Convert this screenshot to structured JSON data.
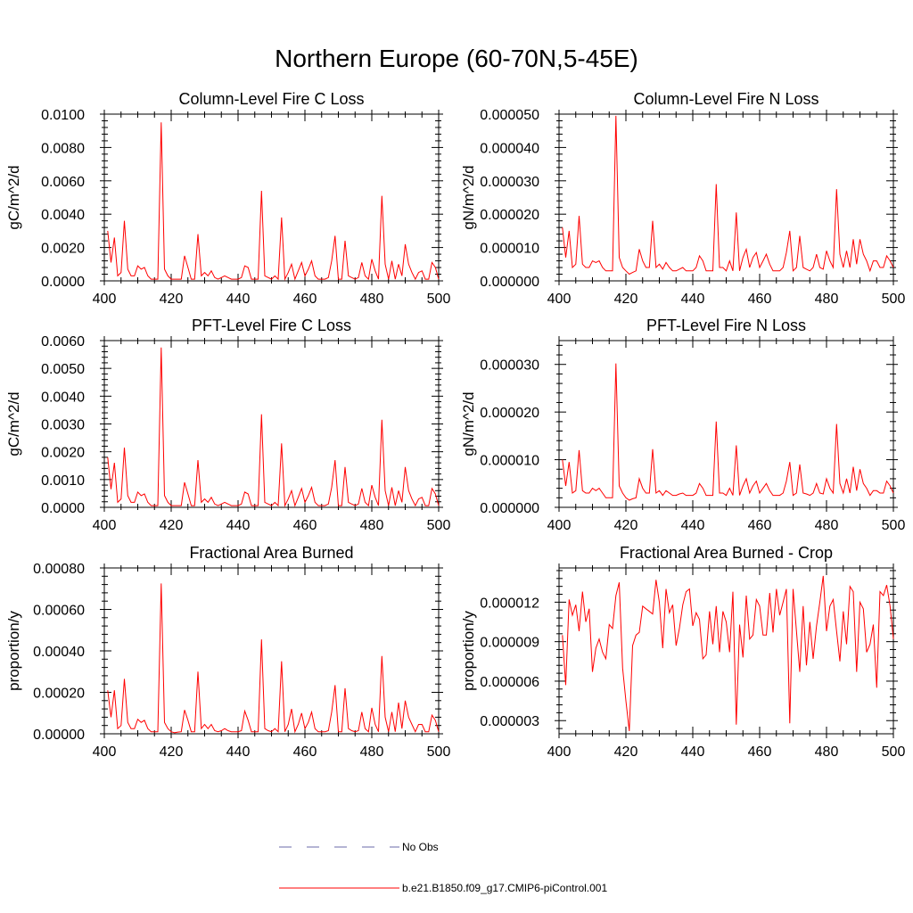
{
  "figure": {
    "title": "Northern Europe (60-70N,5-45E)"
  },
  "legend": {
    "placement": "bottom-center",
    "entries": [
      {
        "label": "No Obs",
        "color": "#6a6aa8",
        "style": "dashed"
      },
      {
        "label": "b.e21.B1850.f09_g17.CMIP6-piControl.001",
        "color": "#ff0000",
        "style": "solid"
      }
    ]
  },
  "chart_data": [
    {
      "type": "line",
      "title": "Column-Level Fire C Loss",
      "ylabel": "gC/m^2/d",
      "xlim": [
        400,
        500
      ],
      "xticks": [
        "400",
        "420",
        "440",
        "460",
        "480",
        "500"
      ],
      "ylim": [
        0,
        0.01
      ],
      "yticks": [
        0,
        0.002,
        0.004,
        0.006,
        0.008,
        0.01
      ],
      "ytick_labels": [
        "0.0000",
        "0.0020",
        "0.0040",
        "0.0060",
        "0.0080",
        "0.0100"
      ],
      "x_start": 401,
      "series": [
        {
          "name": "b.e21.B1850.f09_g17.CMIP6-piControl.001",
          "color": "#ff0000",
          "values": [
            0.003,
            0.0011,
            0.0026,
            0.0003,
            0.0005,
            0.0036,
            0.0007,
            0.0003,
            0.0003,
            0.0009,
            0.0007,
            0.0008,
            0.0003,
            0.0001,
            0.0001,
            0.0001,
            0.0095,
            0.0007,
            0.0003,
            0.0001,
            0.0001,
            0.0001,
            0.0001,
            0.0015,
            0.0008,
            0.0001,
            0.0001,
            0.0028,
            0.0003,
            0.0005,
            0.0003,
            0.0006,
            0.0002,
            0.0001,
            0.0002,
            0.0003,
            0.0002,
            0.0001,
            0.0001,
            0.0001,
            0.0002,
            0.0009,
            0.0008,
            0.0001,
            0.0001,
            0.0001,
            0.0054,
            0.0003,
            0.0002,
            0.0001,
            0.0003,
            0.0001,
            0.0038,
            0.0001,
            0.0005,
            0.001,
            0.0001,
            0.0006,
            0.0011,
            0.0003,
            0.0007,
            0.0012,
            0.0003,
            0.0001,
            0.0001,
            0.0001,
            0.0002,
            0.0012,
            0.0027,
            0.0001,
            0.0001,
            0.0024,
            0.0003,
            0.0002,
            0.0001,
            0.0002,
            0.0011,
            0.0003,
            0.0001,
            0.0013,
            0.0006,
            0.0001,
            0.0051,
            0.001,
            0.0001,
            0.0012,
            0.0001,
            0.001,
            0.0003,
            0.0022,
            0.001,
            0.0005,
            0.0001,
            0.0005,
            0.0006,
            0.0001,
            0.0001,
            0.0011,
            0.0008,
            0.0001
          ]
        }
      ]
    },
    {
      "type": "line",
      "title": "Column-Level Fire N Loss",
      "ylabel": "gN/m^2/d",
      "xlim": [
        400,
        500
      ],
      "xticks": [
        "400",
        "420",
        "440",
        "460",
        "480",
        "500"
      ],
      "ylim": [
        0,
        5e-05
      ],
      "yticks": [
        0,
        1e-05,
        2e-05,
        3e-05,
        4e-05,
        5e-05
      ],
      "ytick_labels": [
        "0.000000",
        "0.000010",
        "0.000020",
        "0.000030",
        "0.000040",
        "0.000050"
      ],
      "x_start": 401,
      "series": [
        {
          "name": "b.e21.B1850.f09_g17.CMIP6-piControl.001",
          "color": "#ff0000",
          "values": [
            1.6e-05,
            7e-06,
            1.5e-05,
            4e-06,
            5e-06,
            1.95e-05,
            5e-06,
            4e-06,
            4e-06,
            6e-06,
            5.5e-06,
            6e-06,
            4e-06,
            3e-06,
            3e-06,
            3e-06,
            4.95e-05,
            7e-06,
            4e-06,
            3e-06,
            2e-06,
            2.5e-06,
            3e-06,
            9.5e-06,
            6e-06,
            4e-06,
            4e-06,
            1.8e-05,
            4e-06,
            5e-06,
            3.5e-06,
            5.5e-06,
            4e-06,
            3e-06,
            3e-06,
            3.5e-06,
            4e-06,
            3e-06,
            3e-06,
            3e-06,
            4e-06,
            7.5e-06,
            6e-06,
            3e-06,
            3e-06,
            3e-06,
            2.9e-05,
            4e-06,
            4e-06,
            3e-06,
            6e-06,
            3e-06,
            2.05e-05,
            3e-06,
            7e-06,
            9.5e-06,
            4e-06,
            7e-06,
            8.5e-06,
            4e-06,
            6e-06,
            8e-06,
            5e-06,
            3e-06,
            3e-06,
            3e-06,
            4e-06,
            8.5e-06,
            1.5e-05,
            3e-06,
            4e-06,
            1.35e-05,
            4e-06,
            3.5e-06,
            3e-06,
            4e-06,
            8e-06,
            4e-06,
            3.5e-06,
            9e-06,
            6e-06,
            4e-06,
            2.75e-05,
            8e-06,
            4e-06,
            9e-06,
            4e-06,
            1.25e-05,
            5e-06,
            1.25e-05,
            8e-06,
            6e-06,
            3e-06,
            6e-06,
            6e-06,
            4e-06,
            4e-06,
            7.5e-06,
            6e-06,
            4e-06
          ]
        }
      ]
    },
    {
      "type": "line",
      "title": "PFT-Level Fire C Loss",
      "ylabel": "gC/m^2/d",
      "xlim": [
        400,
        500
      ],
      "xticks": [
        "400",
        "420",
        "440",
        "460",
        "480",
        "500"
      ],
      "ylim": [
        0,
        0.006
      ],
      "yticks": [
        0,
        0.001,
        0.002,
        0.003,
        0.004,
        0.005,
        0.006
      ],
      "ytick_labels": [
        "0.0000",
        "0.0010",
        "0.0020",
        "0.0030",
        "0.0040",
        "0.0050",
        "0.0060"
      ],
      "x_start": 401,
      "series": [
        {
          "name": "b.e21.B1850.f09_g17.CMIP6-piControl.001",
          "color": "#ff0000",
          "values": [
            0.0018,
            0.00065,
            0.0016,
            0.00018,
            0.0003,
            0.00215,
            0.00042,
            0.00018,
            0.00018,
            0.00055,
            0.00042,
            0.00048,
            0.00018,
            6e-05,
            6e-05,
            6e-05,
            0.00575,
            0.00042,
            0.00018,
            6e-05,
            6e-05,
            6e-05,
            6e-05,
            0.0009,
            0.00048,
            6e-05,
            6e-05,
            0.0017,
            0.00018,
            0.0003,
            0.00018,
            0.00036,
            0.00012,
            6e-05,
            0.00012,
            0.00018,
            0.00012,
            6e-05,
            6e-05,
            6e-05,
            0.00012,
            0.00055,
            0.00048,
            6e-05,
            6e-05,
            6e-05,
            0.00335,
            0.00018,
            0.00012,
            6e-05,
            0.00018,
            6e-05,
            0.0023,
            6e-05,
            0.0003,
            0.0006,
            6e-05,
            0.00036,
            0.00068,
            0.00018,
            0.00042,
            0.00072,
            0.00018,
            6e-05,
            6e-05,
            6e-05,
            0.00012,
            0.00072,
            0.0017,
            6e-05,
            6e-05,
            0.00145,
            0.00018,
            0.00012,
            6e-05,
            0.00012,
            0.00068,
            0.00018,
            6e-05,
            0.0008,
            0.00036,
            6e-05,
            0.00315,
            0.0006,
            6e-05,
            0.00072,
            6e-05,
            0.0006,
            0.00018,
            0.00145,
            0.0006,
            0.0003,
            6e-05,
            0.0003,
            0.00036,
            6e-05,
            6e-05,
            0.00068,
            0.00048,
            6e-05
          ]
        }
      ]
    },
    {
      "type": "line",
      "title": "PFT-Level Fire N Loss",
      "ylabel": "gN/m^2/d",
      "xlim": [
        400,
        500
      ],
      "xticks": [
        "400",
        "420",
        "440",
        "460",
        "480",
        "500"
      ],
      "ylim": [
        0,
        3.5e-05
      ],
      "yticks": [
        0,
        1e-05,
        2e-05,
        3e-05
      ],
      "ytick_labels": [
        "0.000000",
        "0.000010",
        "0.000020",
        "0.000030"
      ],
      "x_start": 401,
      "series": [
        {
          "name": "b.e21.B1850.f09_g17.CMIP6-piControl.001",
          "color": "#ff0000",
          "values": [
            1e-05,
            4.5e-06,
            9.5e-06,
            3e-06,
            3.5e-06,
            1.2e-05,
            3.5e-06,
            3e-06,
            3e-06,
            4e-06,
            3.5e-06,
            4e-06,
            3e-06,
            2e-06,
            2e-06,
            2e-06,
            3.02e-05,
            4.5e-06,
            3e-06,
            2e-06,
            1.5e-06,
            1.8e-06,
            2e-06,
            6e-06,
            4e-06,
            3e-06,
            3e-06,
            1.22e-05,
            3e-06,
            3.5e-06,
            2.5e-06,
            3.5e-06,
            3e-06,
            2.5e-06,
            2.5e-06,
            2.8e-06,
            3e-06,
            2.5e-06,
            2.5e-06,
            2.5e-06,
            3e-06,
            5e-06,
            4e-06,
            2.5e-06,
            2.5e-06,
            2.5e-06,
            1.8e-05,
            3e-06,
            3e-06,
            2.5e-06,
            4e-06,
            2.5e-06,
            1.3e-05,
            2.5e-06,
            4.5e-06,
            6e-06,
            3e-06,
            4.5e-06,
            5.5e-06,
            3e-06,
            4e-06,
            5e-06,
            3.5e-06,
            2.5e-06,
            2.5e-06,
            2.5e-06,
            3e-06,
            5.5e-06,
            9.5e-06,
            2.5e-06,
            3e-06,
            9e-06,
            3e-06,
            2.8e-06,
            2.5e-06,
            3e-06,
            5e-06,
            3e-06,
            2.8e-06,
            6e-06,
            4e-06,
            3e-06,
            1.75e-05,
            5e-06,
            3e-06,
            6e-06,
            3e-06,
            8.5e-06,
            3.5e-06,
            8e-06,
            5e-06,
            4e-06,
            2.5e-06,
            3.5e-06,
            3.5e-06,
            3e-06,
            3e-06,
            5.5e-06,
            4.5e-06,
            3e-06
          ]
        }
      ]
    },
    {
      "type": "line",
      "title": "Fractional Area Burned",
      "ylabel": "proportion/y",
      "xlim": [
        400,
        500
      ],
      "xticks": [
        "400",
        "420",
        "440",
        "460",
        "480",
        "500"
      ],
      "ylim": [
        0,
        0.0008
      ],
      "yticks": [
        0,
        0.0002,
        0.0004,
        0.0006,
        0.0008
      ],
      "ytick_labels": [
        "0.00000",
        "0.00020",
        "0.00040",
        "0.00060",
        "0.00080"
      ],
      "x_start": 401,
      "series": [
        {
          "name": "b.e21.B1850.f09_g17.CMIP6-piControl.001",
          "color": "#ff0000",
          "values": [
            0.00021,
            8e-05,
            0.00021,
            2.5e-05,
            4e-05,
            0.000265,
            5.5e-05,
            2.5e-05,
            2.5e-05,
            7e-05,
            5.5e-05,
            6.5e-05,
            2.5e-05,
            1e-05,
            1e-05,
            1e-05,
            0.000725,
            5.5e-05,
            2.5e-05,
            1e-05,
            5e-06,
            8e-06,
            1e-05,
            0.000115,
            6.5e-05,
            1e-05,
            1e-05,
            0.0003,
            2.5e-05,
            4.5e-05,
            2.5e-05,
            4.5e-05,
            1.5e-05,
            1e-05,
            1.5e-05,
            2.5e-05,
            1.5e-05,
            1e-05,
            1e-05,
            1e-05,
            1.5e-05,
            0.00011,
            6.5e-05,
            1e-05,
            1e-05,
            1e-05,
            0.000455,
            2.5e-05,
            1.5e-05,
            1e-05,
            2.5e-05,
            1e-05,
            0.00035,
            1e-05,
            4.5e-05,
            0.00012,
            1e-05,
            4.5e-05,
            0.0001,
            2.5e-05,
            5.5e-05,
            0.000105,
            2.5e-05,
            1e-05,
            1e-05,
            1e-05,
            1.5e-05,
            0.000105,
            0.000235,
            1e-05,
            1e-05,
            0.00022,
            2.5e-05,
            1.5e-05,
            1e-05,
            1.5e-05,
            0.000105,
            2.5e-05,
            1e-05,
            0.000125,
            4.5e-05,
            1e-05,
            0.000375,
            8e-05,
            1e-05,
            0.000105,
            1e-05,
            0.00015,
            2.5e-05,
            0.00016,
            8e-05,
            4.5e-05,
            1e-05,
            4.5e-05,
            4.5e-05,
            1e-05,
            1e-05,
            9e-05,
            6.5e-05,
            1e-05
          ]
        }
      ]
    },
    {
      "type": "line",
      "title": "Fractional Area Burned - Crop",
      "ylabel": "proportion/y",
      "xlim": [
        400,
        500
      ],
      "xticks": [
        "400",
        "420",
        "440",
        "460",
        "480",
        "500"
      ],
      "ylim": [
        2e-06,
        1.46e-05
      ],
      "yticks": [
        3e-06,
        6e-06,
        9e-06,
        1.2e-05
      ],
      "ytick_labels": [
        "0.000003",
        "0.000006",
        "0.000009",
        "0.000012"
      ],
      "x_start": 401,
      "series": [
        {
          "name": "b.e21.B1850.f09_g17.CMIP6-piControl.001",
          "color": "#ff0000",
          "values": [
            9.5e-06,
            5.7e-06,
            1.22e-05,
            1.1e-05,
            1.18e-05,
            9.8e-06,
            1.28e-05,
            1.05e-05,
            1.15e-05,
            6.7e-06,
            8.5e-06,
            9.2e-06,
            8.2e-06,
            7.7e-06,
            1.03e-05,
            1e-05,
            1.25e-05,
            1.35e-05,
            7e-06,
            4.5e-06,
            2.2e-06,
            8.7e-06,
            9.5e-06,
            9.7e-06,
            1.17e-05,
            1.15e-05,
            1.13e-05,
            1.11e-05,
            1.37e-05,
            1.2e-05,
            8.5e-06,
            1.3e-05,
            1.12e-05,
            1.18e-05,
            8.7e-06,
            1e-05,
            1.18e-05,
            1.28e-05,
            1.3e-05,
            1.02e-05,
            1.12e-05,
            1.07e-05,
            7.7e-06,
            8e-06,
            1.13e-05,
            8.8e-06,
            1.17e-05,
            8.2e-06,
            1.13e-05,
            1.05e-05,
            8.2e-06,
            1.28e-05,
            2.7e-06,
            1.03e-05,
            7.8e-06,
            1.25e-05,
            9.2e-06,
            9.5e-06,
            1.22e-05,
            1.17e-05,
            9.5e-06,
            9.5e-06,
            1.27e-05,
            9.7e-06,
            1.3e-05,
            1.1e-05,
            1.2e-05,
            1.3e-05,
            2.8e-06,
            1.3e-05,
            9.8e-06,
            6.7e-06,
            1.17e-05,
            7.2e-06,
            1.05e-05,
            7.7e-06,
            1.02e-05,
            1.2e-05,
            1.4e-05,
            9.8e-06,
            1.17e-05,
            1.22e-05,
            9.8e-06,
            7.5e-06,
            1.13e-05,
            8.8e-06,
            1.32e-05,
            1.28e-05,
            6.7e-06,
            1.2e-05,
            1.15e-05,
            8.2e-06,
            8.8e-06,
            1.03e-05,
            5.5e-06,
            1.28e-05,
            1.25e-05,
            1.33e-05,
            1.17e-05,
            9.2e-06
          ]
        }
      ]
    }
  ]
}
